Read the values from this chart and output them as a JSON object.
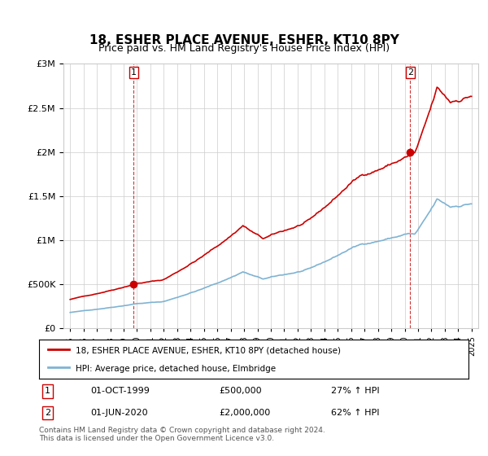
{
  "title": "18, ESHER PLACE AVENUE, ESHER, KT10 8PY",
  "subtitle": "Price paid vs. HM Land Registry's House Price Index (HPI)",
  "legend_line1": "18, ESHER PLACE AVENUE, ESHER, KT10 8PY (detached house)",
  "legend_line2": "HPI: Average price, detached house, Elmbridge",
  "note": "Contains HM Land Registry data © Crown copyright and database right 2024.\nThis data is licensed under the Open Government Licence v3.0.",
  "table": [
    {
      "num": "1",
      "date": "01-OCT-1999",
      "price": "£500,000",
      "hpi": "27% ↑ HPI"
    },
    {
      "num": "2",
      "date": "01-JUN-2020",
      "price": "£2,000,000",
      "hpi": "62% ↑ HPI"
    }
  ],
  "sale1_year": 1999.75,
  "sale1_price": 500000,
  "sale2_year": 2020.42,
  "sale2_price": 2000000,
  "red_line_color": "#cc0000",
  "blue_line_color": "#7fb3d3",
  "dashed_line_color": "#cc0000",
  "background_color": "#ffffff",
  "grid_color": "#cccccc",
  "ylim": [
    0,
    3000000
  ],
  "xlim_start": 1994.5,
  "xlim_end": 2025.5
}
